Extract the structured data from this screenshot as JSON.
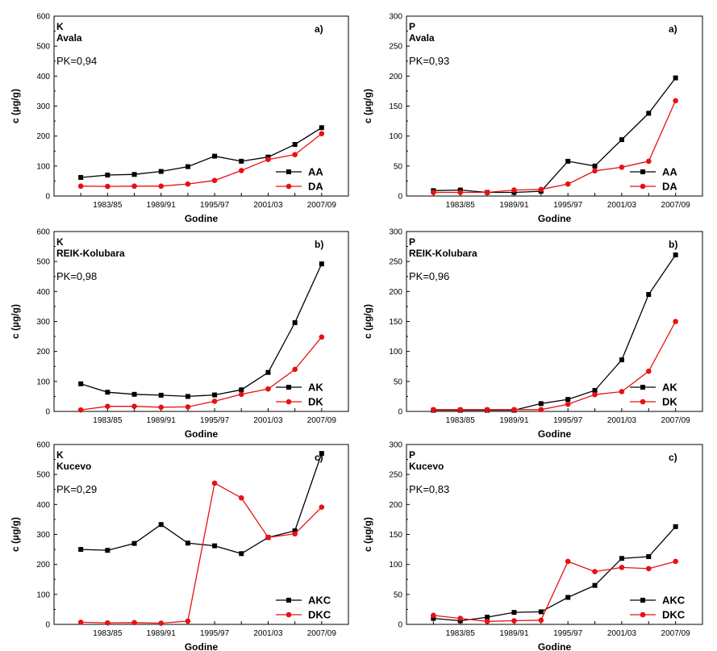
{
  "colors": {
    "series_a": "#000000",
    "series_b": "#e81010",
    "axis": "#000000"
  },
  "chart_data": [
    {
      "type": "line",
      "panel": "K-avala",
      "letter": "K",
      "site": "Avala",
      "pk": "PK=0,94",
      "tag": "a)",
      "ylabel": "c (µg/g)",
      "xlabel": "Godine",
      "ylim": [
        0,
        600
      ],
      "yticks": [
        0,
        100,
        200,
        300,
        400,
        500,
        600
      ],
      "xticks": [
        "1983/85",
        "1989/91",
        "1995/97",
        "2001/03",
        "2007/09"
      ],
      "legend_position": "bottom-right",
      "series": [
        {
          "name": "AA",
          "values": [
            62,
            70,
            72,
            82,
            98,
            133,
            116,
            130,
            172,
            228
          ]
        },
        {
          "name": "DA",
          "values": [
            33,
            32,
            33,
            33,
            40,
            52,
            85,
            122,
            138,
            208
          ]
        }
      ]
    },
    {
      "type": "line",
      "panel": "P-avala",
      "letter": "P",
      "site": "Avala",
      "pk": "PK=0,93",
      "tag": "a)",
      "ylabel": "c (µg/g)",
      "xlabel": "Godine",
      "ylim": [
        0,
        300
      ],
      "yticks": [
        0,
        50,
        100,
        150,
        200,
        250,
        300
      ],
      "xticks": [
        "1983/85",
        "1989/91",
        "1995/97",
        "2001/03",
        "2007/09"
      ],
      "legend_position": "bottom-right",
      "series": [
        {
          "name": "AA",
          "values": [
            9,
            10,
            6,
            6,
            8,
            58,
            50,
            94,
            138,
            197
          ]
        },
        {
          "name": "DA",
          "values": [
            6,
            6,
            6,
            10,
            11,
            20,
            42,
            48,
            58,
            159
          ]
        }
      ]
    },
    {
      "type": "line",
      "panel": "K-kolubara",
      "letter": "K",
      "site": "REIK-Kolubara",
      "pk": "PK=0,98",
      "tag": "b)",
      "ylabel": "c (µg/g)",
      "xlabel": "Godine",
      "ylim": [
        0,
        600
      ],
      "yticks": [
        0,
        100,
        200,
        300,
        400,
        500,
        600
      ],
      "xticks": [
        "1983/85",
        "1989/91",
        "1995/97",
        "2001/03",
        "2007/09"
      ],
      "legend_position": "bottom-right",
      "series": [
        {
          "name": "AK",
          "values": [
            92,
            64,
            57,
            54,
            50,
            55,
            72,
            130,
            296,
            492
          ]
        },
        {
          "name": "DK",
          "values": [
            5,
            17,
            17,
            14,
            15,
            34,
            57,
            75,
            140,
            248
          ]
        }
      ]
    },
    {
      "type": "line",
      "panel": "P-kolubara",
      "letter": "P",
      "site": "REIK-Kolubara",
      "pk": "PK=0,96",
      "tag": "b)",
      "ylabel": "c (µg/g)",
      "xlabel": "Godine",
      "ylim": [
        0,
        300
      ],
      "yticks": [
        0,
        50,
        100,
        150,
        200,
        250,
        300
      ],
      "xticks": [
        "1983/85",
        "1989/91",
        "1995/97",
        "2001/03",
        "2007/09"
      ],
      "legend_position": "bottom-right",
      "series": [
        {
          "name": "AK",
          "values": [
            2,
            2,
            2,
            2,
            13,
            20,
            35,
            86,
            195,
            261
          ]
        },
        {
          "name": "DK",
          "values": [
            3,
            3,
            3,
            3,
            3,
            12,
            28,
            33,
            67,
            150
          ]
        }
      ]
    },
    {
      "type": "line",
      "panel": "K-kucevo",
      "letter": "K",
      "site": "Kucevo",
      "pk": "PK=0,29",
      "tag": "c)",
      "ylabel": "c (µg/g)",
      "xlabel": "Godine",
      "ylim": [
        0,
        600
      ],
      "yticks": [
        0,
        100,
        200,
        300,
        400,
        500,
        600
      ],
      "xticks": [
        "1983/85",
        "1989/91",
        "1995/97",
        "2001/03",
        "2007/09"
      ],
      "legend_position": "bottom-right",
      "series": [
        {
          "name": "AKC",
          "values": [
            250,
            247,
            270,
            333,
            271,
            262,
            236,
            290,
            312,
            570
          ]
        },
        {
          "name": "DKC",
          "values": [
            7,
            5,
            6,
            4,
            11,
            471,
            422,
            290,
            302,
            391
          ]
        }
      ]
    },
    {
      "type": "line",
      "panel": "P-kucevo",
      "letter": "P",
      "site": "Kucevo",
      "pk": "PK=0,83",
      "tag": "c)",
      "ylabel": "c (µg/g)",
      "xlabel": "Godine",
      "ylim": [
        0,
        300
      ],
      "yticks": [
        0,
        50,
        100,
        150,
        200,
        250,
        300
      ],
      "xticks": [
        "1983/85",
        "1989/91",
        "1995/97",
        "2001/03",
        "2007/09"
      ],
      "legend_position": "bottom-right",
      "series": [
        {
          "name": "AKC",
          "values": [
            10,
            6,
            12,
            20,
            21,
            45,
            65,
            110,
            113,
            163
          ]
        },
        {
          "name": "DKC",
          "values": [
            15,
            10,
            5,
            6,
            7,
            105,
            88,
            95,
            93,
            105
          ]
        }
      ]
    }
  ]
}
